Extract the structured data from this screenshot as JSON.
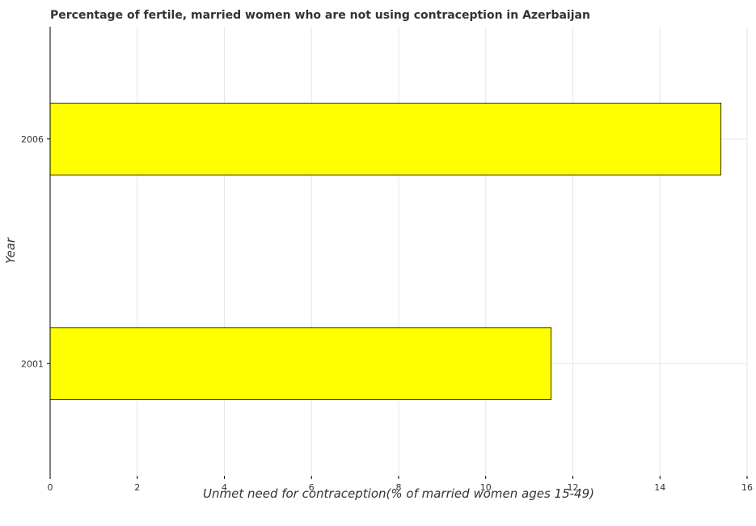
{
  "chart_data": {
    "type": "bar",
    "orientation": "horizontal",
    "title": "Percentage of fertile, married women who are not using contraception in Azerbaijan",
    "xlabel": "Unmet need for contraception(% of married women ages 15-49)",
    "ylabel": "Year",
    "categories": [
      "2001",
      "2006"
    ],
    "values": [
      11.5,
      15.4
    ],
    "xlim": [
      0,
      16
    ],
    "xticks": [
      "0",
      "2",
      "4",
      "6",
      "8",
      "10",
      "12",
      "14",
      "16"
    ],
    "grid": true,
    "bar_color": "#ffff00",
    "bar_edge_color": "#000000"
  }
}
